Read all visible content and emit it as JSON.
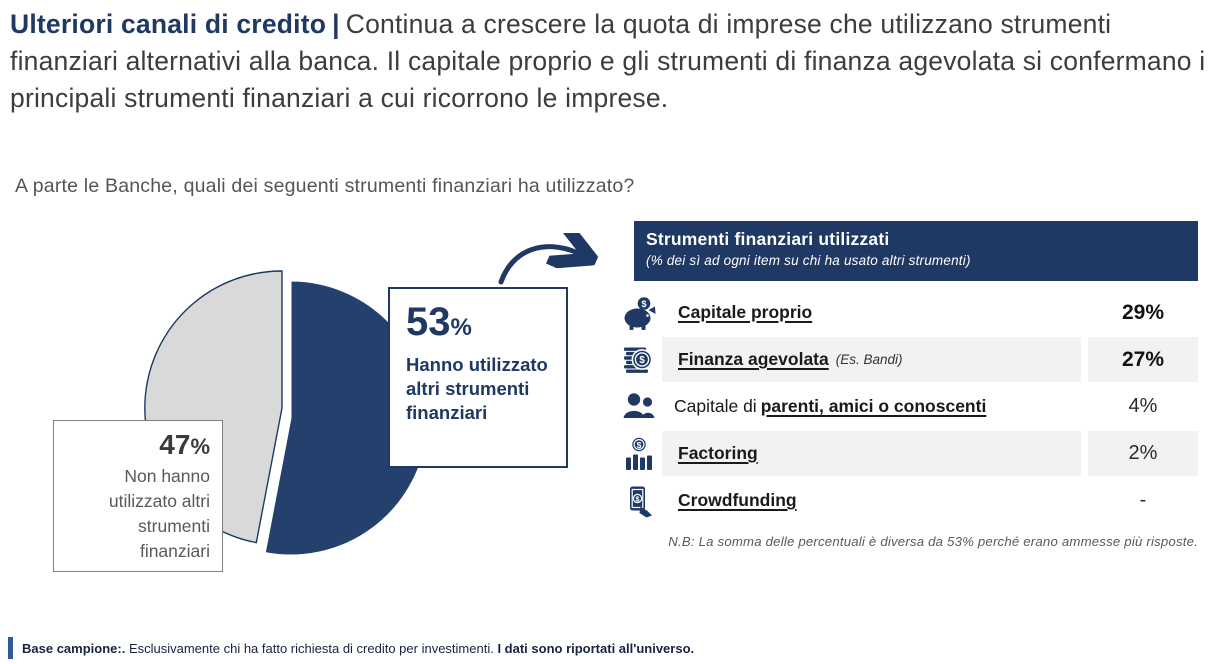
{
  "accent_navy": "#1F3864",
  "title": {
    "lead": "Ulteriori canali di credito",
    "separator": "|",
    "body": "Continua a crescere la quota di imprese che utilizzano strumenti finanziari alternativi alla banca. Il capitale proprio e gli strumenti di finanza agevolata si confermano i principali strumenti finanziari a cui ricorrono le imprese."
  },
  "question": "A parte le Banche, quali dei seguenti strumenti finanziari ha utilizzato?",
  "pie": {
    "callout_yes": {
      "value": "53",
      "unit": "%",
      "label": "Hanno utilizzato altri strumenti finanziari"
    },
    "callout_no": {
      "value": "47",
      "unit": "%",
      "label": "Non hanno utilizzato altri strumenti finanziari"
    }
  },
  "table": {
    "header": {
      "title": "Strumenti finanziari utilizzati",
      "subtitle": "(% dei sì ad ogni item su chi ha usato altri strumenti)"
    },
    "rows": [
      {
        "icon": "piggy-bank-icon",
        "prefix": "",
        "label": "Capitale proprio",
        "suffix": "",
        "value": "29%"
      },
      {
        "icon": "coins-stack-icon",
        "prefix": "",
        "label": "Finanza agevolata",
        "suffix": "(Es. Bandi)",
        "value": "27%"
      },
      {
        "icon": "people-icon",
        "prefix": "Capitale di",
        "label": "parenti, amici o conoscenti",
        "suffix": "",
        "value": "4%"
      },
      {
        "icon": "factoring-bars-icon",
        "prefix": "",
        "label": "Factoring",
        "suffix": "",
        "value": "2%"
      },
      {
        "icon": "crowdfunding-icon",
        "prefix": "",
        "label": "Crowdfunding",
        "suffix": "",
        "value": "-"
      }
    ],
    "note": "N.B: La somma delle percentuali è diversa da 53% perché erano ammesse più risposte."
  },
  "footer": {
    "lead": "Base campione:.",
    "body": " Esclusivamente chi ha fatto richiesta di credito per investimenti. ",
    "emphasis": "I dati sono riportati all'universo."
  },
  "chart_data": {
    "type": "pie",
    "title": "A parte le Banche, quali dei seguenti strumenti finanziari ha utilizzato?",
    "labels": [
      "Hanno utilizzato altri strumenti finanziari",
      "Non hanno utilizzato altri strumenti finanziari"
    ],
    "values": [
      53,
      47
    ],
    "colors": [
      "#24416E",
      "#D9D9D9"
    ],
    "legend_position": "callout-boxes",
    "detail_table": {
      "title": "Strumenti finanziari utilizzati",
      "subtitle": "(% dei sì ad ogni item su chi ha usato altri strumenti)",
      "categories": [
        "Capitale proprio",
        "Finanza agevolata (Es. Bandi)",
        "Capitale di parenti, amici o conoscenti",
        "Factoring",
        "Crowdfunding"
      ],
      "values": [
        "29%",
        "27%",
        "4%",
        "2%",
        "-"
      ],
      "note": "N.B: La somma delle percentuali è diversa da 53% perché erano ammesse più risposte."
    }
  }
}
